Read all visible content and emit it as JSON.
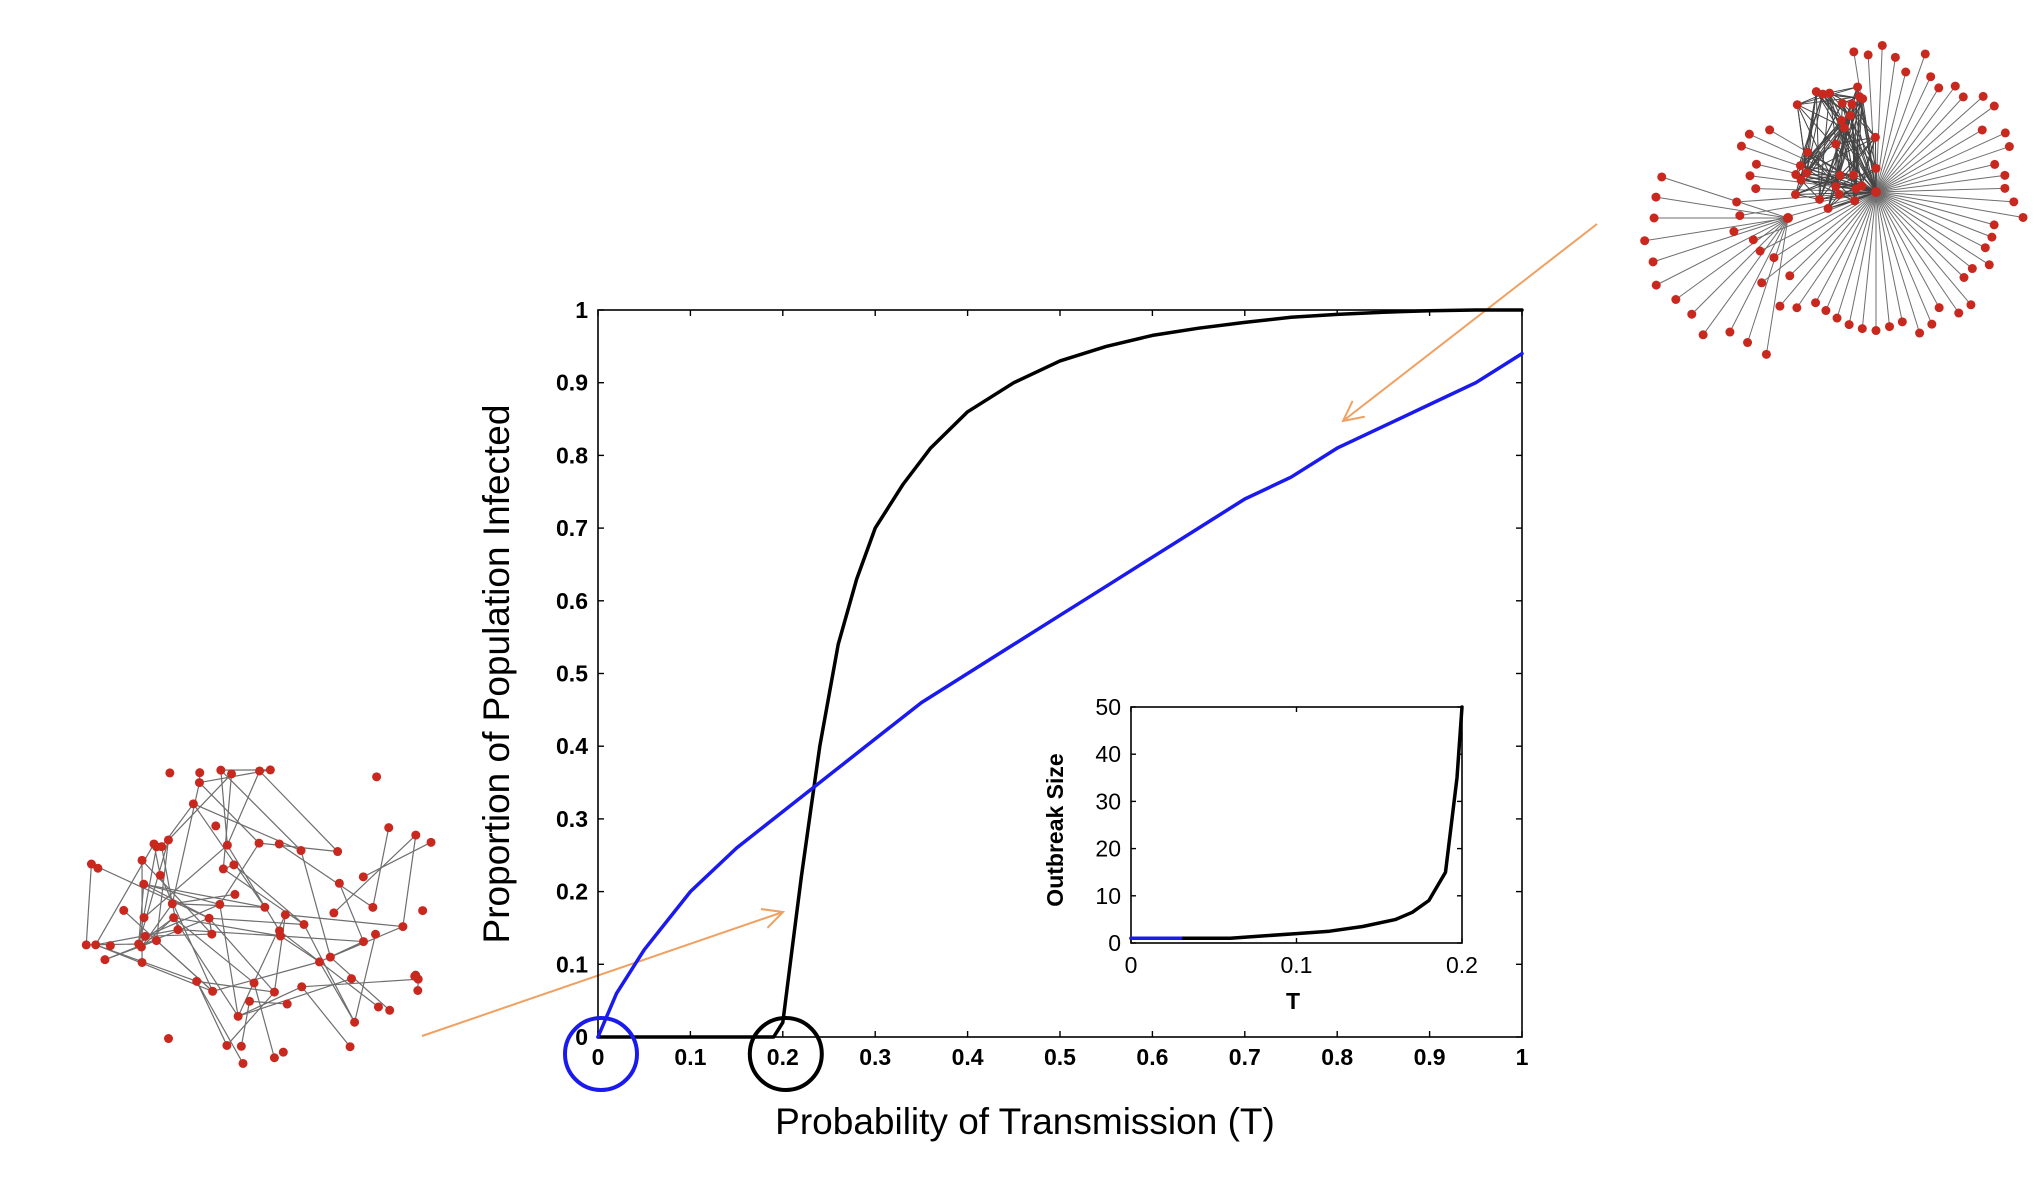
{
  "colors": {
    "black_series": "#000000",
    "blue_series": "#1a1aee",
    "arrow": "#f0a060",
    "node": "#c8281e",
    "edge": "#6e6e6e"
  },
  "chart_data": [
    {
      "type": "line",
      "xlabel": "Probability of Transmission (T)",
      "ylabel": "Proportion of Population Infected",
      "xlim": [
        0,
        1
      ],
      "ylim": [
        0,
        1
      ],
      "xticks": [
        "0",
        "0.1",
        "0.2",
        "0.3",
        "0.4",
        "0.5",
        "0.6",
        "0.7",
        "0.8",
        "0.9",
        "1"
      ],
      "yticks": [
        "0",
        "0.1",
        "0.2",
        "0.3",
        "0.4",
        "0.5",
        "0.6",
        "0.7",
        "0.8",
        "0.9",
        "1"
      ],
      "grid": false,
      "series": [
        {
          "color": "black",
          "x": [
            0,
            0.19,
            0.2,
            0.21,
            0.22,
            0.23,
            0.24,
            0.25,
            0.26,
            0.28,
            0.3,
            0.33,
            0.36,
            0.4,
            0.45,
            0.5,
            0.55,
            0.6,
            0.65,
            0.7,
            0.75,
            0.8,
            0.85,
            0.9,
            0.95,
            1.0
          ],
          "y": [
            0,
            0,
            0.02,
            0.12,
            0.22,
            0.31,
            0.4,
            0.47,
            0.54,
            0.63,
            0.7,
            0.76,
            0.81,
            0.86,
            0.9,
            0.93,
            0.95,
            0.965,
            0.975,
            0.983,
            0.99,
            0.994,
            0.997,
            0.999,
            1.0,
            1.0
          ]
        },
        {
          "color": "blue",
          "x": [
            0,
            0.02,
            0.05,
            0.1,
            0.15,
            0.2,
            0.25,
            0.3,
            0.35,
            0.4,
            0.45,
            0.5,
            0.55,
            0.6,
            0.65,
            0.7,
            0.75,
            0.8,
            0.85,
            0.9,
            0.95,
            1.0
          ],
          "y": [
            0,
            0.06,
            0.12,
            0.2,
            0.26,
            0.31,
            0.36,
            0.41,
            0.46,
            0.5,
            0.54,
            0.58,
            0.62,
            0.66,
            0.7,
            0.74,
            0.77,
            0.81,
            0.84,
            0.87,
            0.9,
            0.94
          ]
        }
      ],
      "annotations": [
        {
          "shape": "circle",
          "color": "blue",
          "at_x": 0,
          "at_y": 0
        },
        {
          "shape": "circle",
          "color": "black",
          "at_x": 0.2,
          "at_y": 0
        }
      ]
    },
    {
      "type": "line",
      "role": "inset",
      "xlabel": "T",
      "ylabel": "Outbreak Size",
      "xlim": [
        0,
        0.2
      ],
      "ylim": [
        0,
        50
      ],
      "xticks": [
        "0",
        "0.1",
        "0.2"
      ],
      "yticks": [
        "0",
        "10",
        "20",
        "30",
        "40",
        "50"
      ],
      "series": [
        {
          "color": "black",
          "x": [
            0,
            0.03,
            0.06,
            0.08,
            0.1,
            0.12,
            0.14,
            0.16,
            0.17,
            0.18,
            0.19,
            0.197,
            0.2
          ],
          "y": [
            1,
            1,
            1,
            1.5,
            2,
            2.5,
            3.5,
            5,
            6.5,
            9,
            15,
            35,
            50
          ]
        },
        {
          "color": "blue",
          "x": [
            0,
            0.03
          ],
          "y": [
            1,
            1
          ]
        }
      ]
    }
  ]
}
